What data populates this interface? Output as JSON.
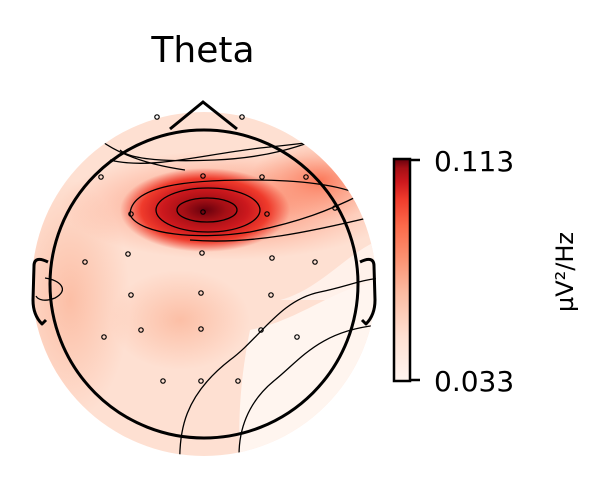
{
  "chart_data": {
    "type": "heatmap",
    "title": "Theta",
    "colorbar": {
      "label": "µV²/Hz",
      "min": 0.033,
      "max": 0.113,
      "tick_labels": [
        "0.113",
        "0.033"
      ],
      "colormap": "Reds",
      "color_low": "#fff5f0",
      "color_high": "#67000d"
    },
    "peak_value": 0.113,
    "peak_region": "frontal",
    "electrodes_count": 22
  }
}
